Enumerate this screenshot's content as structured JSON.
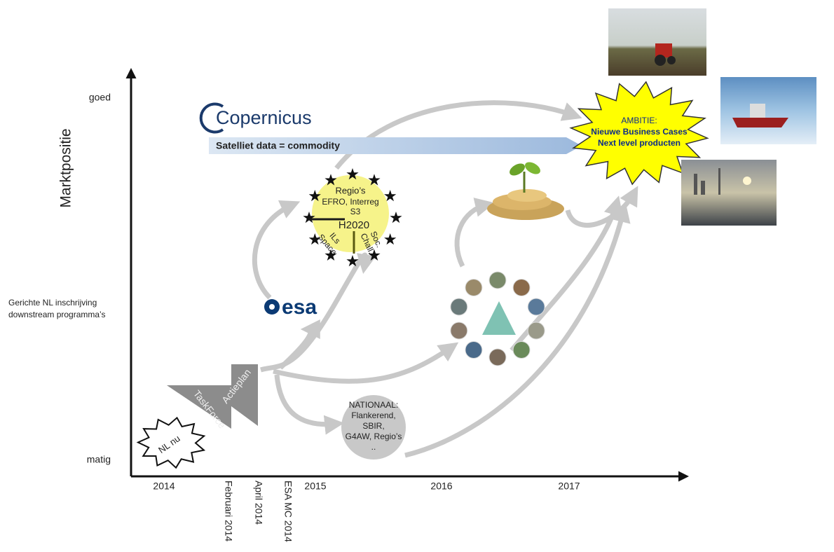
{
  "axes": {
    "y_title": "Marktpositie",
    "y_labels": {
      "top": "goed",
      "middle": [
        "Gerichte NL inschrijving",
        "downstream programma’s"
      ],
      "bottom": "matig"
    },
    "x_labels": [
      "2014",
      "2015",
      "2016",
      "2017"
    ],
    "milestones": [
      "Februari 2014",
      "April 2014",
      "ESA MC 2014"
    ]
  },
  "steps": {
    "start": "NL nu",
    "taskforce": "TaskForce",
    "actieplan": "Actieplan"
  },
  "copernicus": {
    "logo": "Copernicus",
    "banner": "Satelliet data = commodity"
  },
  "eu": {
    "regio": "Regio’s",
    "efro": "EFRO, Interreg",
    "s3": "S3",
    "h2020": "H2020",
    "ils": [
      "ILs",
      "Space"
    ],
    "soc": [
      "Soc.",
      "Chall."
    ]
  },
  "esa": "esa",
  "nationaal": [
    "NATIONAAL:",
    "Flankerend,",
    "SBIR,",
    "G4AW, Regio’s",
    ".."
  ],
  "ambitie": [
    "AMBITIE:",
    "Nieuwe Business Cases",
    "Next level producten"
  ]
}
